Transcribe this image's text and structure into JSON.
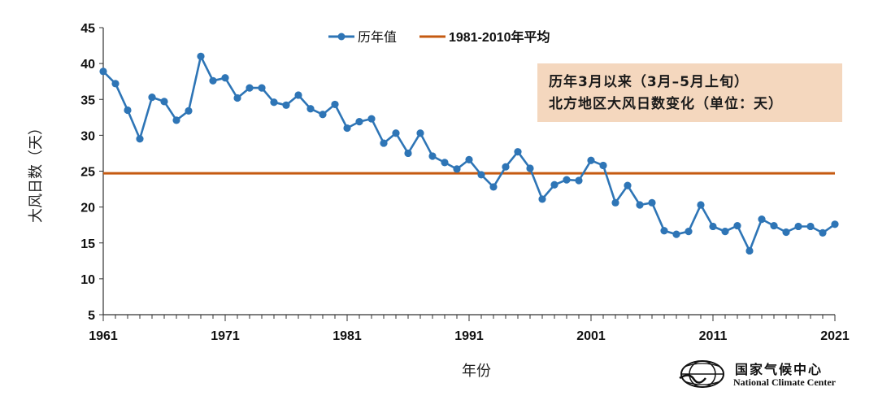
{
  "chart_data": {
    "type": "line",
    "title": "历年3月以来（3月-5月上旬）北方地区大风日数变化（单位：天）",
    "title_lines": [
      "历年3月以来（3月–5月上旬）",
      "北方地区大风日数变化（单位：天）"
    ],
    "xlabel": "年份",
    "ylabel": "大风日数（天）",
    "xlim": [
      1961,
      2021
    ],
    "ylim": [
      5,
      45
    ],
    "x_ticks": [
      "1961",
      "1971",
      "1981",
      "1991",
      "2001",
      "2011",
      "2021"
    ],
    "y_ticks": [
      "5",
      "10",
      "15",
      "20",
      "25",
      "30",
      "35",
      "40",
      "45"
    ],
    "legend_position": "top-center",
    "series": [
      {
        "name": "历年值",
        "color": "#2e75b6",
        "marker": "circle",
        "x": [
          1961,
          1962,
          1963,
          1964,
          1965,
          1966,
          1967,
          1968,
          1969,
          1970,
          1971,
          1972,
          1973,
          1974,
          1975,
          1976,
          1977,
          1978,
          1979,
          1980,
          1981,
          1982,
          1983,
          1984,
          1985,
          1986,
          1987,
          1988,
          1989,
          1990,
          1991,
          1992,
          1993,
          1994,
          1995,
          1996,
          1997,
          1998,
          1999,
          2000,
          2001,
          2002,
          2003,
          2004,
          2005,
          2006,
          2007,
          2008,
          2009,
          2010,
          2011,
          2012,
          2013,
          2014,
          2015,
          2016,
          2017,
          2018,
          2019,
          2020,
          2021
        ],
        "values": [
          38.9,
          37.2,
          33.5,
          29.5,
          35.3,
          34.7,
          32.1,
          33.4,
          41.0,
          37.6,
          38.0,
          35.2,
          36.6,
          36.6,
          34.6,
          34.2,
          35.6,
          33.7,
          32.9,
          34.3,
          31.0,
          31.9,
          32.3,
          28.9,
          30.3,
          27.5,
          30.3,
          27.1,
          26.2,
          25.3,
          26.6,
          24.5,
          22.8,
          25.6,
          27.7,
          25.4,
          21.1,
          23.1,
          23.8,
          23.7,
          26.5,
          25.8,
          20.6,
          23.0,
          20.3,
          20.6,
          16.7,
          16.2,
          16.6,
          20.3,
          17.3,
          16.6,
          17.4,
          13.9,
          18.3,
          17.4,
          16.5,
          17.3,
          17.3,
          16.4,
          17.6
        ]
      },
      {
        "name": "1981-2010年平均",
        "color": "#c55a11",
        "x": [
          1961,
          2021
        ],
        "values": [
          24.7,
          24.7
        ]
      }
    ]
  },
  "logo": {
    "name_cn": "国家气候中心",
    "name_en": "National Climate Center",
    "icon": "cma-logo-icon"
  }
}
